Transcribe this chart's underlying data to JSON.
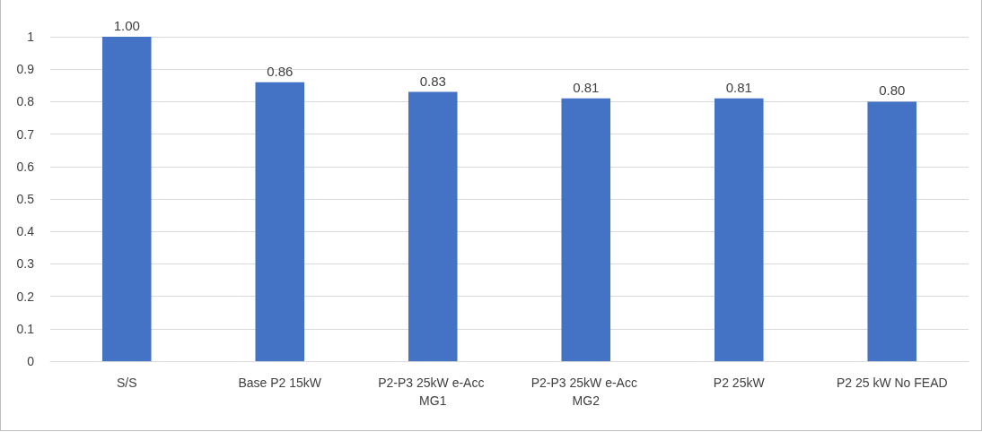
{
  "chart_data": {
    "type": "bar",
    "categories": [
      "S/S",
      "Base P2 15kW",
      "P2-P3 25kW e-Acc MG1",
      "P2-P3 25kW e-Acc MG2",
      "P2 25kW",
      "P2 25 kW No FEAD"
    ],
    "values": [
      1.0,
      0.86,
      0.83,
      0.81,
      0.81,
      0.8
    ],
    "value_labels": [
      "1.00",
      "0.86",
      "0.83",
      "0.81",
      "0.81",
      "0.80"
    ],
    "color": "#4472c4",
    "ylim": [
      0,
      1
    ],
    "yticks": [
      0,
      0.1,
      0.2,
      0.3,
      0.4,
      0.5,
      0.6,
      0.7,
      0.8,
      0.9,
      1
    ],
    "grid": "y"
  }
}
